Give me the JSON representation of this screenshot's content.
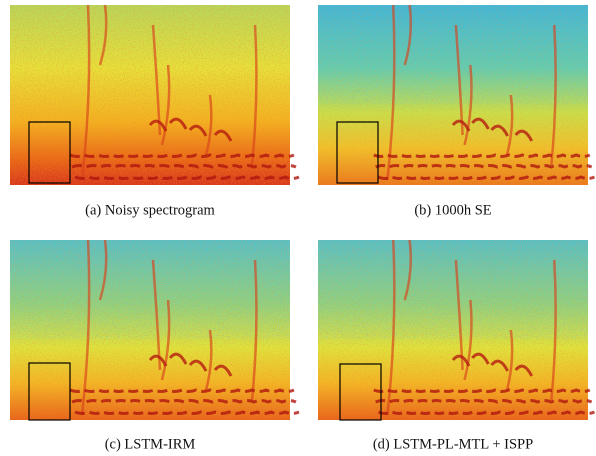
{
  "panels": [
    {
      "caption": "(a)  Noisy spectrogram"
    },
    {
      "caption": "(b)  1000h SE"
    },
    {
      "caption": "(c)  LSTM-IRM"
    },
    {
      "caption": "(d)  LSTM-PL-MTL + ISPP"
    }
  ]
}
